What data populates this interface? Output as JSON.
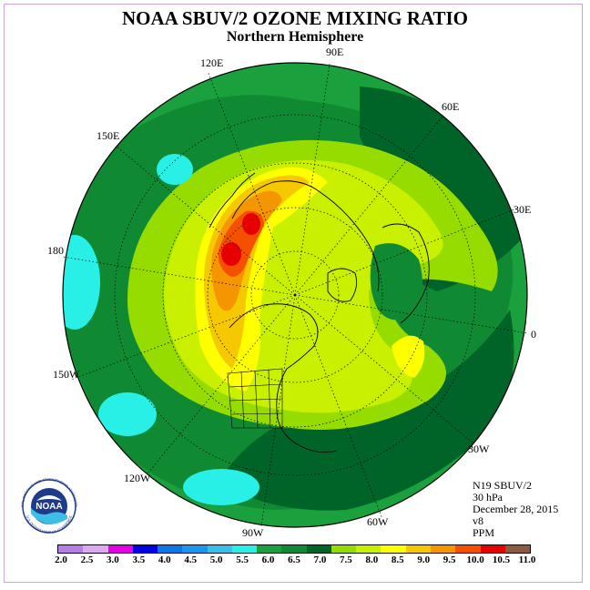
{
  "title": "NOAA SBUV/2 OZONE MIXING RATIO",
  "subtitle": "Northern Hemisphere",
  "longitude_labels": {
    "lon_120e": "120E",
    "lon_90e": "90E",
    "lon_60e": "60E",
    "lon_150e": "150E",
    "lon_30e": "30E",
    "lon_180": "180",
    "lon_0": "0",
    "lon_150w": "150W",
    "lon_30w": "30W",
    "lon_120w": "120W",
    "lon_60w": "60W",
    "lon_90w": "90W"
  },
  "info": {
    "instrument": "N19 SBUV/2",
    "level": "30 hPa",
    "date": "December 28, 2015",
    "version": "v8",
    "units": "PPM"
  },
  "colorbar": {
    "ticks": [
      "2.0",
      "2.5",
      "3.0",
      "3.5",
      "4.0",
      "4.5",
      "5.0",
      "5.5",
      "6.0",
      "6.5",
      "7.0",
      "7.5",
      "8.0",
      "8.5",
      "9.0",
      "9.5",
      "10.0",
      "10.5",
      "11.0"
    ],
    "colors": [
      "#b57fe6",
      "#dcaaf0",
      "#e600e6",
      "#0000e6",
      "#0a78e6",
      "#1e96f0",
      "#3cbee6",
      "#28f0e6",
      "#1aa03c",
      "#0f8a32",
      "#006428",
      "#96dc00",
      "#c8f000",
      "#ffff00",
      "#f5c800",
      "#f59600",
      "#f55000",
      "#e60000",
      "#8c5a3c"
    ]
  },
  "map_colors": {
    "ocean_background": "#ffffff",
    "band_6_0": "#1aa03c",
    "band_6_5": "#0f8a32",
    "band_7_0": "#006428",
    "band_7_5": "#96dc00",
    "band_8_0": "#c8f000",
    "band_8_5": "#ffff00",
    "band_9_0": "#f5c800",
    "band_9_5": "#f59600",
    "band_10_0": "#f55000",
    "band_10_5": "#e60000",
    "band_5_5": "#28f0e6"
  },
  "logo": {
    "text": "NOAA",
    "ring_text": "NATIONAL OCEANIC AND ATMOSPHERIC ADMINISTRATION",
    "ring_text_bottom": "U.S. DEPARTMENT OF COMMERCE"
  }
}
